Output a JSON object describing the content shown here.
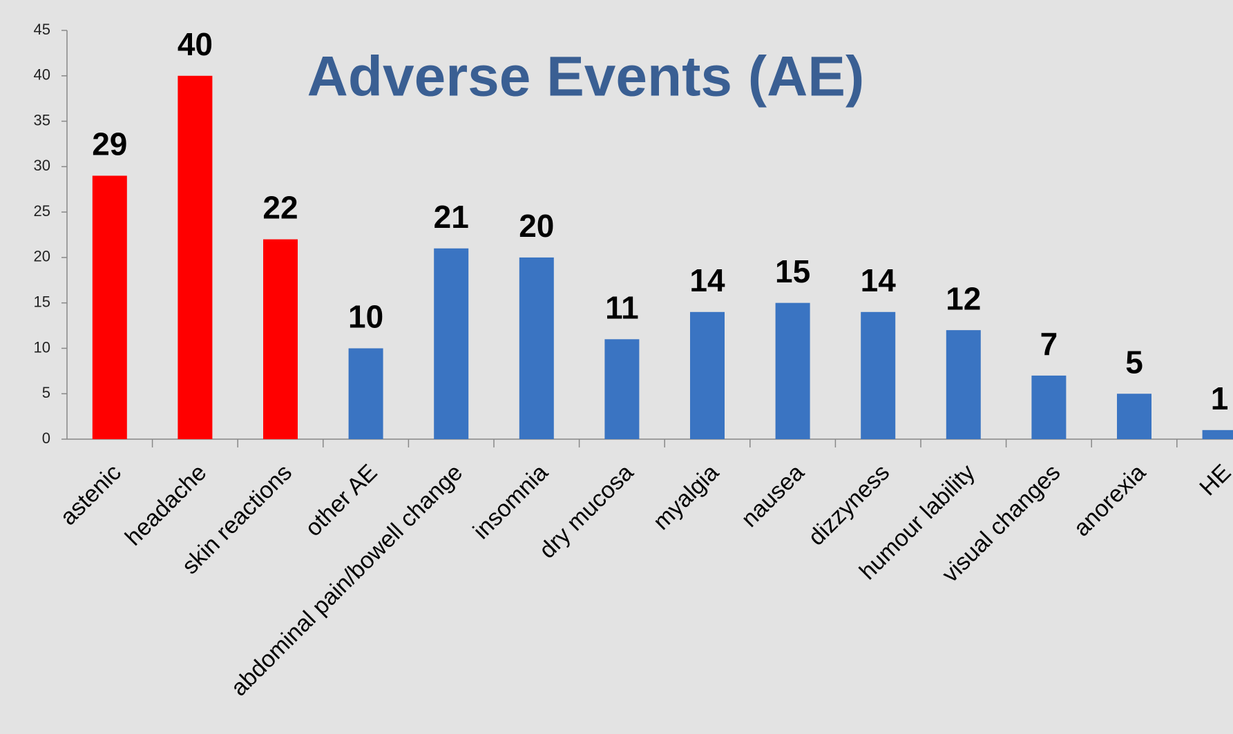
{
  "chart_data": {
    "type": "bar",
    "title": "Adverse Events (AE)",
    "categories": [
      "astenic",
      "headache",
      "skin reactions",
      "other AE",
      "abdominal pain/bowell change",
      "insomnia",
      "dry mucosa",
      "myalgia",
      "nausea",
      "dizzyness",
      "humour lability",
      "visual changes",
      "anorexia",
      "HE"
    ],
    "values": [
      29,
      40,
      22,
      10,
      21,
      20,
      11,
      14,
      15,
      14,
      12,
      7,
      5,
      1
    ],
    "colors": [
      "#ff0000",
      "#ff0000",
      "#ff0000",
      "#3a74c2",
      "#3a74c2",
      "#3a74c2",
      "#3a74c2",
      "#3a74c2",
      "#3a74c2",
      "#3a74c2",
      "#3a74c2",
      "#3a74c2",
      "#3a74c2",
      "#3a74c2"
    ],
    "ylim": [
      0,
      45
    ],
    "yticks": [
      0,
      5,
      10,
      15,
      20,
      25,
      30,
      35,
      40,
      45
    ],
    "grid": false
  }
}
